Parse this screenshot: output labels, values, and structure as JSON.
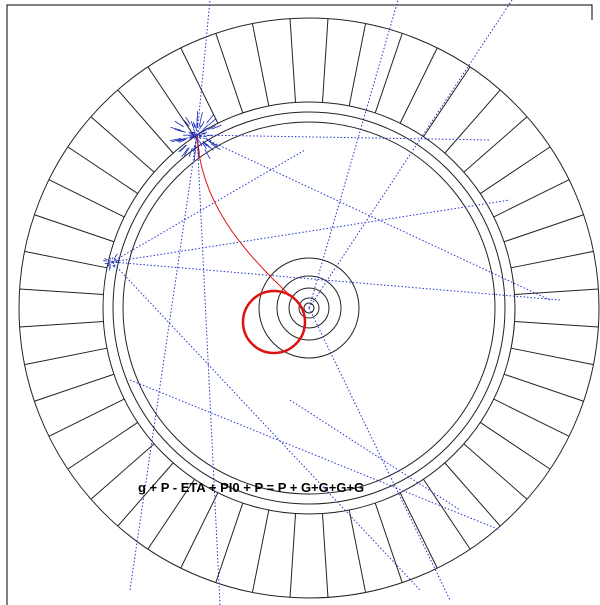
{
  "event_label": "g + P - ETA + PI0 + P = P + G+G+G+G"
}
